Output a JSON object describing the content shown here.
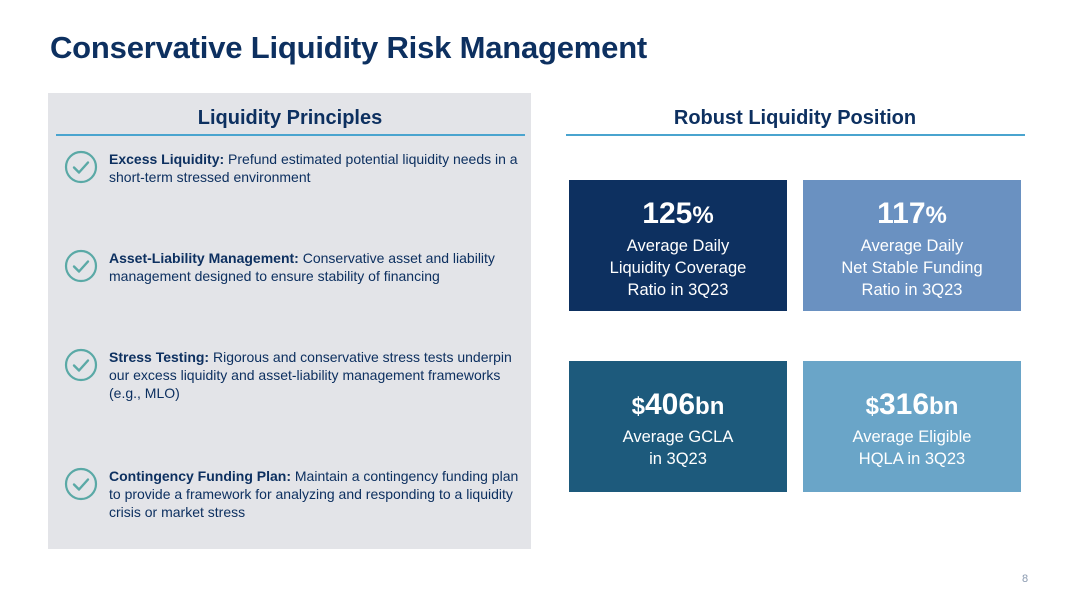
{
  "slide": {
    "title": "Conservative Liquidity Risk Management",
    "page_number": "8"
  },
  "principles": {
    "heading": "Liquidity Principles",
    "items": [
      {
        "title": "Excess Liquidity:",
        "text": "Prefund estimated potential liquidity needs in a short-term stressed environment",
        "icon": "check-circle-icon"
      },
      {
        "title": "Asset-Liability Management:",
        "text": "Conservative asset and liability management designed to ensure stability of financing",
        "icon": "check-circle-icon"
      },
      {
        "title": "Stress Testing:",
        "text": "Rigorous and conservative stress tests underpin our excess liquidity and asset-liability management frameworks (e.g., MLO)",
        "icon": "check-circle-icon"
      },
      {
        "title": "Contingency Funding Plan:",
        "text": "Maintain a contingency funding plan to provide a framework for analyzing and responding to a liquidity crisis or market stress",
        "icon": "check-circle-icon"
      }
    ]
  },
  "position": {
    "heading": "Robust Liquidity Position",
    "stats": [
      {
        "prefix": "",
        "value": "125",
        "unit": "%",
        "label_lines": [
          "Average Daily",
          "Liquidity Coverage",
          "Ratio in 3Q23"
        ],
        "color": "#0d3060"
      },
      {
        "prefix": "",
        "value": "117",
        "unit": "%",
        "label_lines": [
          "Average Daily",
          "Net Stable Funding",
          "Ratio in 3Q23"
        ],
        "color": "#6a91c1"
      },
      {
        "prefix": "$",
        "value": "406",
        "unit": "bn",
        "label_lines": [
          "Average GCLA",
          "in 3Q23"
        ],
        "color": "#1d5a7c"
      },
      {
        "prefix": "$",
        "value": "316",
        "unit": "bn",
        "label_lines": [
          "Average Eligible",
          "HQLA in 3Q23"
        ],
        "color": "#6aa5c8"
      }
    ]
  },
  "colors": {
    "title": "#0d3060",
    "accent_rule": "#4aa4cf",
    "check_icon": "#5aa9a6",
    "panel_bg": "#e3e4e8"
  }
}
